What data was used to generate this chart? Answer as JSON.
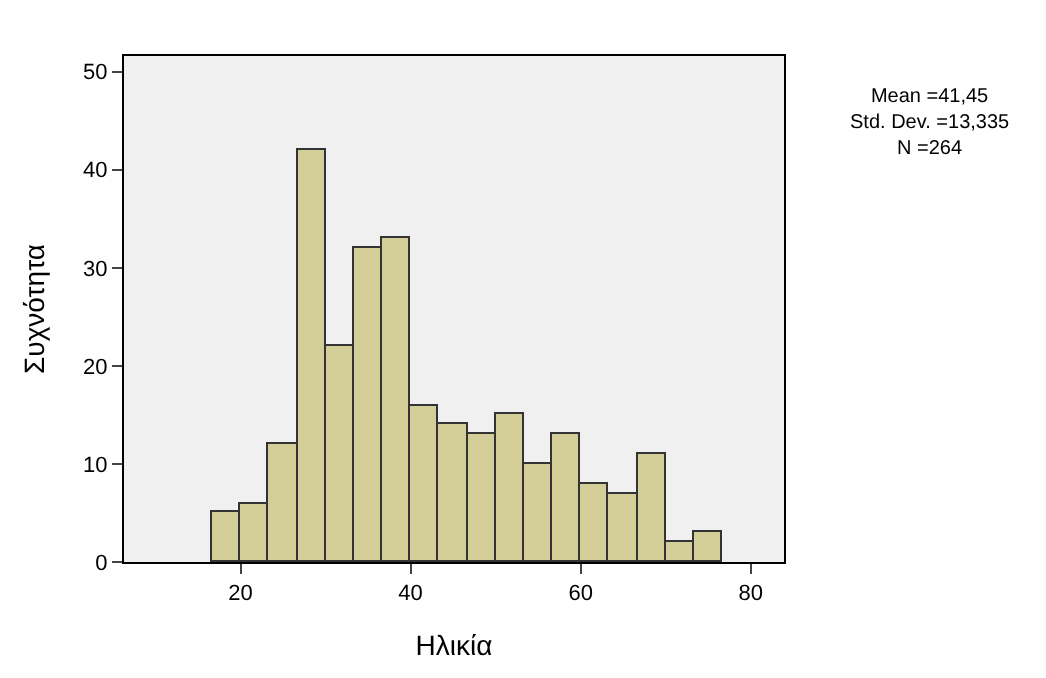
{
  "chart_data": {
    "type": "histogram",
    "xlabel": "Ηλικία",
    "ylabel": "Συχνότητα",
    "bins": [
      16.7,
      20,
      23.3,
      26.7,
      30,
      33.3,
      36.7,
      40,
      43.3,
      46.7,
      50,
      53.3,
      56.7,
      60,
      63.3,
      66.7,
      70,
      73.3,
      76.7
    ],
    "values": [
      5,
      6,
      12,
      42,
      22,
      32,
      33,
      16,
      14,
      13,
      15,
      10,
      13,
      8,
      7,
      11,
      2,
      3
    ],
    "color": "#d3ce97",
    "xlim": [
      6.3,
      83.9
    ],
    "xticks": [
      20,
      40,
      60,
      80
    ],
    "ylim": [
      0,
      51.6
    ],
    "yticks": [
      0,
      10,
      20,
      30,
      40,
      50
    ],
    "grid": false,
    "annotations": [
      "Mean =41,45\nStd. Dev. =13,335\nN =264"
    ]
  }
}
